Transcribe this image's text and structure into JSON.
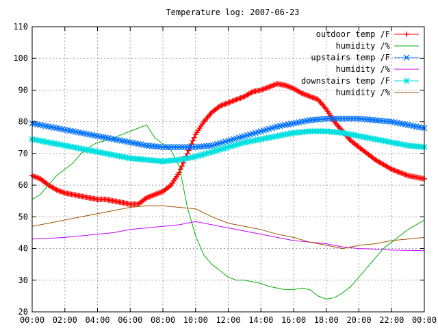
{
  "chart_data": {
    "type": "line",
    "title": "Temperature log: 2007-06-23",
    "xlabel": "",
    "ylabel": "",
    "grid": true,
    "legend_placement": "top-right",
    "x_ticks": [
      "00:00",
      "02:00",
      "04:00",
      "06:00",
      "08:00",
      "10:00",
      "12:00",
      "14:00",
      "16:00",
      "18:00",
      "20:00",
      "22:00",
      "00:00"
    ],
    "xlim": [
      0,
      24
    ],
    "ylim": [
      20,
      110
    ],
    "y_ticks": [
      20,
      30,
      40,
      50,
      60,
      70,
      80,
      90,
      100,
      110
    ],
    "series": [
      {
        "name": "outdoor temp /F",
        "color": "#ff0000",
        "marker": "plus",
        "x": [
          0,
          0.5,
          1,
          1.5,
          2,
          2.5,
          3,
          3.5,
          4,
          4.5,
          5,
          5.5,
          6,
          6.5,
          7,
          7.5,
          8,
          8.5,
          9,
          9.5,
          10,
          10.5,
          11,
          11.5,
          12,
          12.5,
          13,
          13.5,
          14,
          14.5,
          15,
          15.5,
          16,
          16.5,
          17,
          17.5,
          18,
          18.5,
          19,
          19.5,
          20,
          20.5,
          21,
          21.5,
          22,
          22.5,
          23,
          23.5,
          24
        ],
        "values": [
          63,
          62,
          60,
          58.5,
          57.5,
          57,
          56.5,
          56,
          55.5,
          55.5,
          55,
          54.5,
          54,
          54,
          56,
          57,
          58,
          60,
          64,
          70,
          76,
          80,
          83,
          85,
          86,
          87,
          88,
          89.5,
          90,
          91,
          92,
          91.5,
          90.5,
          89,
          88,
          87,
          84,
          80,
          77,
          74,
          72,
          70,
          68,
          66.5,
          65,
          64,
          63,
          62.5,
          62
        ]
      },
      {
        "name": "humidity /%",
        "color": "#00b000",
        "marker": "none",
        "x": [
          0,
          0.5,
          1,
          1.5,
          2,
          2.5,
          3,
          3.5,
          4,
          4.5,
          5,
          5.5,
          6,
          6.5,
          7,
          7.5,
          8,
          8.5,
          9,
          9.5,
          10,
          10.5,
          11,
          11.5,
          12,
          12.5,
          13,
          13.5,
          14,
          14.5,
          15,
          15.5,
          16,
          16.5,
          17,
          17.5,
          18,
          18.5,
          19,
          19.5,
          20,
          20.5,
          21,
          21.5,
          22,
          22.5,
          23,
          23.5,
          24
        ],
        "values": [
          55.5,
          57,
          60,
          63,
          65,
          67,
          70,
          72,
          73.5,
          74,
          75,
          76,
          77,
          78,
          79,
          75,
          73,
          71,
          66,
          53,
          44,
          38,
          35,
          33,
          31,
          30,
          30,
          29.5,
          29,
          28,
          27.5,
          27,
          27,
          27.5,
          27,
          25,
          24,
          24.5,
          26,
          28,
          31,
          34,
          37,
          40,
          42,
          44,
          46,
          47.5,
          49
        ]
      },
      {
        "name": "upstairs temp /F",
        "color": "#0070ff",
        "marker": "x",
        "x": [
          0,
          1,
          2,
          3,
          4,
          5,
          6,
          7,
          8,
          9,
          10,
          11,
          12,
          13,
          14,
          15,
          16,
          17,
          18,
          19,
          20,
          21,
          22,
          23,
          24
        ],
        "values": [
          79.5,
          78.5,
          77.5,
          76.5,
          75.5,
          74.5,
          73.5,
          72.5,
          72,
          72,
          72,
          72.5,
          74,
          75.5,
          77,
          78.5,
          79.5,
          80.5,
          81,
          81,
          81,
          80.5,
          80,
          79,
          78
        ]
      },
      {
        "name": "humidity /%",
        "color": "#c000ff",
        "marker": "none",
        "x": [
          0,
          1,
          2,
          3,
          4,
          5,
          6,
          7,
          8,
          9,
          10,
          11,
          12,
          13,
          14,
          15,
          16,
          17,
          18,
          19,
          20,
          21,
          22,
          23,
          24
        ],
        "values": [
          43,
          43.2,
          43.5,
          44,
          44.5,
          45,
          46,
          46.5,
          47,
          47.5,
          48.5,
          47.5,
          46.5,
          45.5,
          44.5,
          43.5,
          42.5,
          42,
          41.5,
          40.5,
          40,
          39.8,
          39.5,
          39.4,
          39.3
        ]
      },
      {
        "name": "downstairs temp /F",
        "color": "#00e0e0",
        "marker": "star",
        "x": [
          0,
          1,
          2,
          3,
          4,
          5,
          6,
          7,
          8,
          9,
          10,
          11,
          12,
          13,
          14,
          15,
          16,
          17,
          18,
          19,
          20,
          21,
          22,
          23,
          24
        ],
        "values": [
          74.5,
          73.5,
          72.5,
          71.5,
          70.5,
          69.5,
          68.5,
          68,
          67.5,
          68,
          69,
          70.5,
          72,
          73.5,
          74.5,
          75.5,
          76.5,
          77,
          77,
          76.5,
          75.5,
          74.5,
          73.5,
          72.5,
          72
        ]
      },
      {
        "name": "humidity /%",
        "color": "#a05000",
        "marker": "none",
        "x": [
          0,
          1,
          2,
          3,
          4,
          5,
          6,
          7,
          8,
          9,
          10,
          11,
          12,
          13,
          14,
          15,
          16,
          17,
          18,
          19,
          20,
          21,
          22,
          23,
          24
        ],
        "values": [
          47,
          48,
          49,
          50,
          51,
          52,
          53,
          53.5,
          53.5,
          53,
          52.5,
          50,
          48,
          47,
          46,
          44.5,
          43.5,
          42,
          41,
          40,
          41,
          41.5,
          42.5,
          43,
          43.5
        ]
      }
    ]
  }
}
